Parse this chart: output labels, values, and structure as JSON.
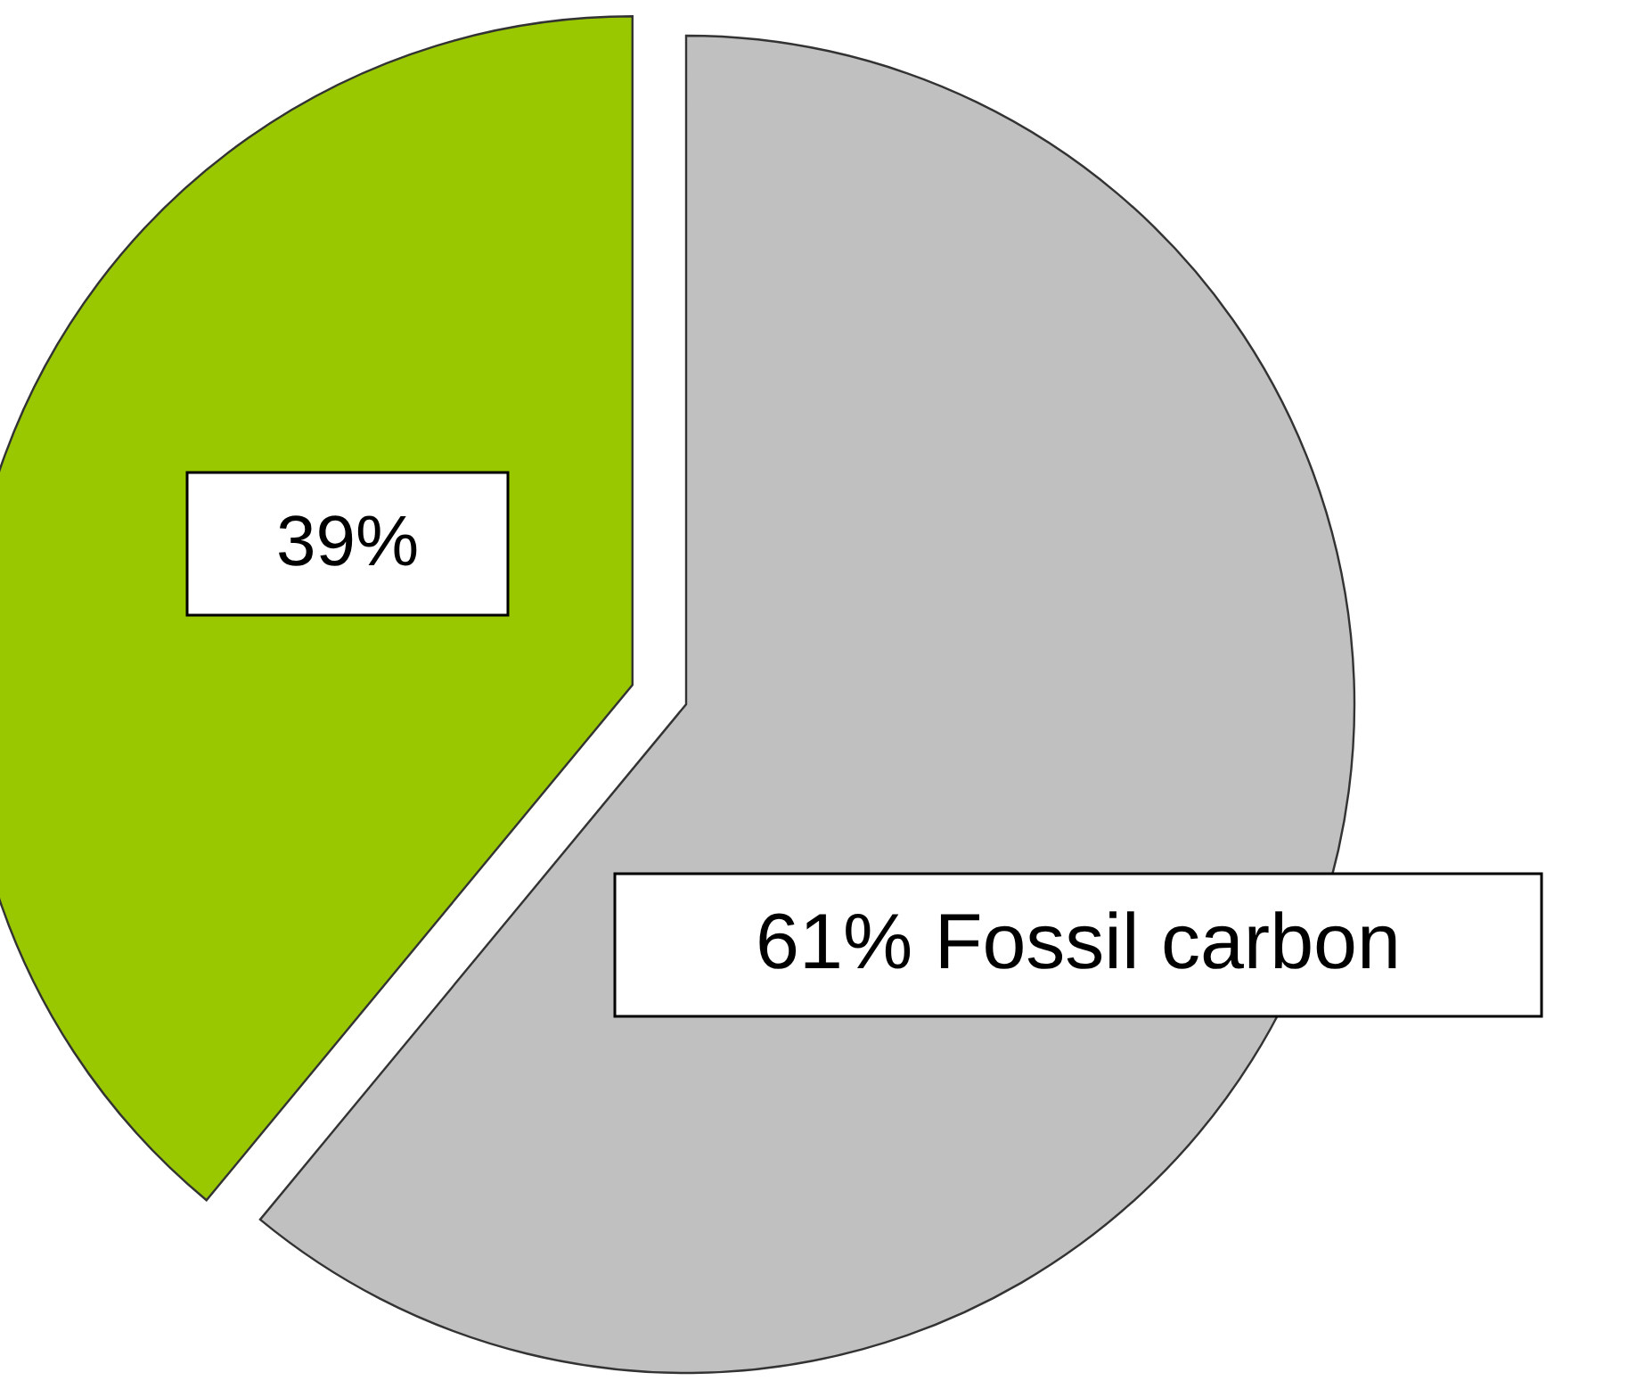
{
  "chart_data": {
    "type": "pie",
    "categories": [
      null,
      null
    ],
    "values": [
      61,
      39
    ],
    "colors": [
      "#c0c0c0",
      "#99c800"
    ],
    "value_labels": [
      "61% Fossil carbon",
      "39%"
    ]
  }
}
